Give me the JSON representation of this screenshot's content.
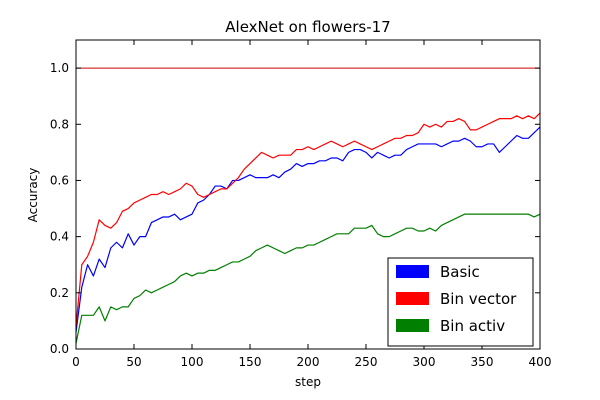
{
  "chart_data": {
    "type": "line",
    "title": "AlexNet on flowers-17",
    "xlabel": "step",
    "ylabel": "Accuracy",
    "xlim": [
      0,
      400
    ],
    "ylim": [
      0,
      1.1
    ],
    "xticks": [
      0,
      50,
      100,
      150,
      200,
      250,
      300,
      350,
      400
    ],
    "yticks": [
      0.0,
      0.2,
      0.4,
      0.6,
      0.8,
      1.0
    ],
    "xtick_labels": [
      "0",
      "50",
      "100",
      "150",
      "200",
      "250",
      "300",
      "350",
      "400"
    ],
    "ytick_labels": [
      "0.0",
      "0.2",
      "0.4",
      "0.6",
      "0.8",
      "1.0"
    ],
    "grid": false,
    "legend_position": "lower-right",
    "reference_line": {
      "y": 1.0,
      "color": "#cc0000"
    },
    "series": [
      {
        "name": "Basic",
        "color": "#0000ff",
        "x": [
          0,
          5,
          10,
          15,
          20,
          25,
          30,
          35,
          40,
          45,
          50,
          55,
          60,
          65,
          70,
          75,
          80,
          85,
          90,
          95,
          100,
          105,
          110,
          115,
          120,
          125,
          130,
          135,
          140,
          145,
          150,
          155,
          160,
          165,
          170,
          175,
          180,
          185,
          190,
          195,
          200,
          205,
          210,
          215,
          220,
          225,
          230,
          235,
          240,
          245,
          250,
          255,
          260,
          265,
          270,
          275,
          280,
          285,
          290,
          295,
          300,
          305,
          310,
          315,
          320,
          325,
          330,
          335,
          340,
          345,
          350,
          355,
          360,
          365,
          370,
          375,
          380,
          385,
          390,
          395,
          400
        ],
        "y": [
          0.06,
          0.22,
          0.3,
          0.26,
          0.32,
          0.29,
          0.36,
          0.38,
          0.36,
          0.41,
          0.37,
          0.4,
          0.4,
          0.45,
          0.46,
          0.47,
          0.47,
          0.48,
          0.46,
          0.47,
          0.48,
          0.52,
          0.53,
          0.55,
          0.58,
          0.58,
          0.57,
          0.6,
          0.6,
          0.61,
          0.62,
          0.61,
          0.61,
          0.61,
          0.62,
          0.61,
          0.63,
          0.64,
          0.66,
          0.65,
          0.66,
          0.66,
          0.67,
          0.67,
          0.68,
          0.68,
          0.67,
          0.7,
          0.71,
          0.71,
          0.7,
          0.68,
          0.7,
          0.69,
          0.68,
          0.69,
          0.69,
          0.71,
          0.72,
          0.73,
          0.73,
          0.73,
          0.73,
          0.72,
          0.73,
          0.74,
          0.74,
          0.75,
          0.74,
          0.72,
          0.72,
          0.73,
          0.73,
          0.7,
          0.72,
          0.74,
          0.76,
          0.75,
          0.75,
          0.77,
          0.79
        ]
      },
      {
        "name": "Bin vector",
        "color": "#ff0000",
        "x": [
          0,
          5,
          10,
          15,
          20,
          25,
          30,
          35,
          40,
          45,
          50,
          55,
          60,
          65,
          70,
          75,
          80,
          85,
          90,
          95,
          100,
          105,
          110,
          115,
          120,
          125,
          130,
          135,
          140,
          145,
          150,
          155,
          160,
          165,
          170,
          175,
          180,
          185,
          190,
          195,
          200,
          205,
          210,
          215,
          220,
          225,
          230,
          235,
          240,
          245,
          250,
          255,
          260,
          265,
          270,
          275,
          280,
          285,
          290,
          295,
          300,
          305,
          310,
          315,
          320,
          325,
          330,
          335,
          340,
          345,
          350,
          355,
          360,
          365,
          370,
          375,
          380,
          385,
          390,
          395,
          400
        ],
        "y": [
          0.08,
          0.3,
          0.33,
          0.38,
          0.46,
          0.44,
          0.43,
          0.45,
          0.49,
          0.5,
          0.52,
          0.53,
          0.54,
          0.55,
          0.55,
          0.56,
          0.55,
          0.56,
          0.57,
          0.59,
          0.58,
          0.55,
          0.54,
          0.55,
          0.56,
          0.57,
          0.57,
          0.59,
          0.61,
          0.64,
          0.66,
          0.68,
          0.7,
          0.69,
          0.68,
          0.69,
          0.69,
          0.69,
          0.71,
          0.71,
          0.72,
          0.71,
          0.72,
          0.73,
          0.74,
          0.73,
          0.72,
          0.73,
          0.74,
          0.73,
          0.72,
          0.71,
          0.72,
          0.73,
          0.74,
          0.75,
          0.75,
          0.76,
          0.76,
          0.77,
          0.8,
          0.79,
          0.8,
          0.79,
          0.81,
          0.81,
          0.82,
          0.81,
          0.78,
          0.78,
          0.79,
          0.8,
          0.81,
          0.82,
          0.82,
          0.82,
          0.83,
          0.82,
          0.83,
          0.82,
          0.84
        ]
      },
      {
        "name": "Bin activ",
        "color": "#007f00",
        "x": [
          0,
          5,
          10,
          15,
          20,
          25,
          30,
          35,
          40,
          45,
          50,
          55,
          60,
          65,
          70,
          75,
          80,
          85,
          90,
          95,
          100,
          105,
          110,
          115,
          120,
          125,
          130,
          135,
          140,
          145,
          150,
          155,
          160,
          165,
          170,
          175,
          180,
          185,
          190,
          195,
          200,
          205,
          210,
          215,
          220,
          225,
          230,
          235,
          240,
          245,
          250,
          255,
          260,
          265,
          270,
          275,
          280,
          285,
          290,
          295,
          300,
          305,
          310,
          315,
          320,
          325,
          330,
          335,
          340,
          345,
          350,
          355,
          360,
          365,
          370,
          375,
          380,
          385,
          390,
          395,
          400
        ],
        "y": [
          0.02,
          0.12,
          0.12,
          0.12,
          0.15,
          0.1,
          0.15,
          0.14,
          0.15,
          0.15,
          0.18,
          0.19,
          0.21,
          0.2,
          0.21,
          0.22,
          0.23,
          0.24,
          0.26,
          0.27,
          0.26,
          0.27,
          0.27,
          0.28,
          0.28,
          0.29,
          0.3,
          0.31,
          0.31,
          0.32,
          0.33,
          0.35,
          0.36,
          0.37,
          0.36,
          0.35,
          0.34,
          0.35,
          0.36,
          0.36,
          0.37,
          0.37,
          0.38,
          0.39,
          0.4,
          0.41,
          0.41,
          0.41,
          0.43,
          0.43,
          0.43,
          0.44,
          0.41,
          0.4,
          0.4,
          0.41,
          0.42,
          0.43,
          0.43,
          0.42,
          0.42,
          0.43,
          0.42,
          0.44,
          0.45,
          0.46,
          0.47,
          0.48,
          0.48,
          0.48,
          0.48,
          0.48,
          0.48,
          0.48,
          0.48,
          0.48,
          0.48,
          0.48,
          0.48,
          0.47,
          0.48
        ]
      }
    ]
  }
}
